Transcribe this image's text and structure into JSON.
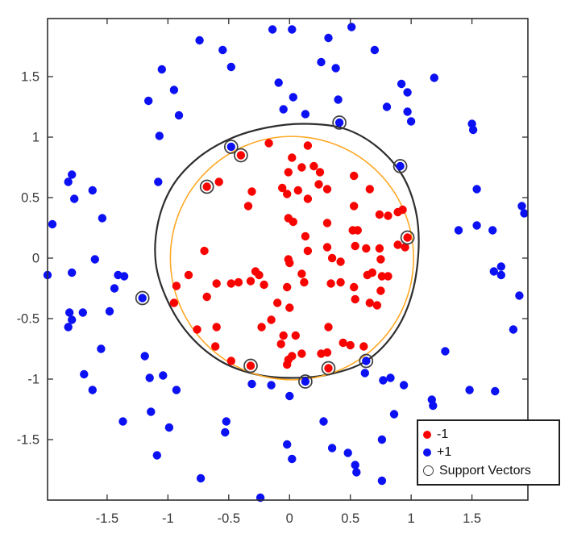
{
  "figure": {
    "background": "#ffffff"
  },
  "colors": {
    "neg1": "#f80400",
    "pos1": "#0b11f2",
    "boundary": "#2e2e2e",
    "reference_circle": "#ffa824",
    "sv_ring": "#3f3f3f",
    "axis": "#2f2f2f",
    "tick_label": "#3a3a3a"
  },
  "chart_data": {
    "type": "scatter",
    "title": "",
    "xlabel": "",
    "ylabel": "",
    "grid": false,
    "xlim": [
      -1.99,
      1.96
    ],
    "ylim": [
      -2.0,
      1.98
    ],
    "xticks": [
      "-1.5",
      "-1",
      "-0.5",
      "0",
      "0.5",
      "1",
      "1.5"
    ],
    "yticks": [
      "-1.5",
      "-1",
      "-0.5",
      "0",
      "0.5",
      "1",
      "1.5"
    ],
    "legend_position": "bottom-right",
    "legend": {
      "items": [
        {
          "label": "-1",
          "marker": "red-dot"
        },
        {
          "label": "+1",
          "marker": "blue-dot"
        },
        {
          "label": "Support Vectors",
          "marker": "open-circle"
        }
      ]
    },
    "series": [
      {
        "name": "-1",
        "marker": "filled-circle",
        "color_key": "neg1",
        "points": [
          [
            -0.17,
            0.95
          ],
          [
            0.15,
            0.93
          ],
          [
            0.02,
            0.83
          ],
          [
            -0.01,
            0.71
          ],
          [
            0.1,
            0.75
          ],
          [
            0.2,
            0.76
          ],
          [
            0.25,
            0.71
          ],
          [
            0.53,
            0.68
          ],
          [
            -0.58,
            0.63
          ],
          [
            -0.68,
            0.59
          ],
          [
            -0.4,
            0.85
          ],
          [
            -0.31,
            0.55
          ],
          [
            -0.06,
            0.58
          ],
          [
            -0.02,
            0.53
          ],
          [
            0.07,
            0.56
          ],
          [
            0.15,
            0.49
          ],
          [
            0.24,
            0.61
          ],
          [
            0.31,
            0.57
          ],
          [
            0.66,
            0.57
          ],
          [
            -0.34,
            0.43
          ],
          [
            -0.01,
            0.33
          ],
          [
            0.03,
            0.3
          ],
          [
            0.53,
            0.43
          ],
          [
            0.31,
            0.29
          ],
          [
            0.52,
            0.23
          ],
          [
            0.56,
            0.23
          ],
          [
            0.13,
            0.18
          ],
          [
            0.74,
            0.36
          ],
          [
            0.81,
            0.35
          ],
          [
            0.89,
            0.38
          ],
          [
            0.93,
            0.4
          ],
          [
            0.97,
            0.17
          ],
          [
            0.15,
            0.06
          ],
          [
            -0.7,
            0.06
          ],
          [
            0.31,
            0.09
          ],
          [
            0.35,
            0.0
          ],
          [
            0.42,
            -0.03
          ],
          [
            0.54,
            0.1
          ],
          [
            0.63,
            0.08
          ],
          [
            0.89,
            0.11
          ],
          [
            0.95,
            0.09
          ],
          [
            0.74,
            0.08
          ],
          [
            0.75,
            -0.01
          ],
          [
            -0.01,
            -0.01
          ],
          [
            0.0,
            -0.04
          ],
          [
            -0.28,
            -0.11
          ],
          [
            -0.25,
            -0.14
          ],
          [
            -0.6,
            -0.21
          ],
          [
            -0.48,
            -0.21
          ],
          [
            -0.42,
            -0.2
          ],
          [
            -0.32,
            -0.19
          ],
          [
            -0.21,
            -0.22
          ],
          [
            0.1,
            -0.13
          ],
          [
            0.12,
            -0.2
          ],
          [
            -0.02,
            -0.24
          ],
          [
            0.34,
            -0.21
          ],
          [
            0.42,
            -0.2
          ],
          [
            0.53,
            -0.24
          ],
          [
            0.64,
            -0.14
          ],
          [
            -0.83,
            -0.14
          ],
          [
            -0.93,
            -0.23
          ],
          [
            -0.95,
            -0.37
          ],
          [
            -0.68,
            -0.32
          ],
          [
            0.68,
            -0.12
          ],
          [
            0.76,
            -0.15
          ],
          [
            0.81,
            -0.15
          ],
          [
            0.75,
            -0.27
          ],
          [
            0.54,
            -0.34
          ],
          [
            -0.1,
            -0.37
          ],
          [
            0.0,
            -0.41
          ],
          [
            0.66,
            -0.37
          ],
          [
            0.72,
            -0.39
          ],
          [
            -0.15,
            -0.51
          ],
          [
            -0.23,
            -0.57
          ],
          [
            -0.6,
            -0.57
          ],
          [
            -0.76,
            -0.59
          ],
          [
            -0.05,
            -0.64
          ],
          [
            0.05,
            -0.64
          ],
          [
            0.32,
            -0.57
          ],
          [
            -0.61,
            -0.73
          ],
          [
            -0.48,
            -0.85
          ],
          [
            -0.07,
            -0.71
          ],
          [
            -0.01,
            -0.84
          ],
          [
            0.02,
            -0.81
          ],
          [
            0.1,
            -0.79
          ],
          [
            0.26,
            -0.79
          ],
          [
            0.31,
            -0.78
          ],
          [
            0.44,
            -0.7
          ],
          [
            0.5,
            -0.72
          ],
          [
            0.61,
            -0.73
          ],
          [
            -0.02,
            -0.88
          ],
          [
            -0.32,
            -0.89
          ],
          [
            0.32,
            -0.91
          ]
        ]
      },
      {
        "name": "+1",
        "marker": "filled-circle",
        "color_key": "pos1",
        "points": [
          [
            -0.14,
            1.89
          ],
          [
            0.02,
            1.89
          ],
          [
            0.51,
            1.91
          ],
          [
            0.32,
            1.82
          ],
          [
            -0.74,
            1.8
          ],
          [
            -0.55,
            1.72
          ],
          [
            0.7,
            1.72
          ],
          [
            0.26,
            1.62
          ],
          [
            0.38,
            1.57
          ],
          [
            -0.48,
            1.58
          ],
          [
            -1.05,
            1.56
          ],
          [
            1.19,
            1.49
          ],
          [
            -0.09,
            1.45
          ],
          [
            0.92,
            1.44
          ],
          [
            -0.95,
            1.39
          ],
          [
            0.97,
            1.37
          ],
          [
            0.03,
            1.33
          ],
          [
            0.4,
            1.31
          ],
          [
            -1.16,
            1.3
          ],
          [
            0.8,
            1.25
          ],
          [
            -0.05,
            1.23
          ],
          [
            0.97,
            1.21
          ],
          [
            0.13,
            1.19
          ],
          [
            -0.91,
            1.18
          ],
          [
            1.0,
            1.13
          ],
          [
            0.41,
            1.12
          ],
          [
            1.5,
            1.11
          ],
          [
            1.51,
            1.06
          ],
          [
            -1.07,
            1.01
          ],
          [
            -0.48,
            0.92
          ],
          [
            0.91,
            0.76
          ],
          [
            -1.79,
            0.69
          ],
          [
            -1.82,
            0.63
          ],
          [
            -1.08,
            0.63
          ],
          [
            -1.62,
            0.56
          ],
          [
            1.54,
            0.57
          ],
          [
            -1.77,
            0.49
          ],
          [
            1.91,
            0.43
          ],
          [
            1.93,
            0.37
          ],
          [
            -1.54,
            0.33
          ],
          [
            -1.95,
            0.28
          ],
          [
            1.54,
            0.27
          ],
          [
            1.39,
            0.23
          ],
          [
            1.67,
            0.23
          ],
          [
            -1.6,
            -0.01
          ],
          [
            -1.79,
            -0.12
          ],
          [
            -1.99,
            -0.14
          ],
          [
            -1.41,
            -0.14
          ],
          [
            -1.36,
            -0.15
          ],
          [
            1.68,
            -0.11
          ],
          [
            1.74,
            -0.07
          ],
          [
            1.74,
            -0.14
          ],
          [
            -1.44,
            -0.25
          ],
          [
            -1.21,
            -0.33
          ],
          [
            1.89,
            -0.31
          ],
          [
            -1.48,
            -0.44
          ],
          [
            -1.81,
            -0.45
          ],
          [
            -1.7,
            -0.45
          ],
          [
            -1.79,
            -0.51
          ],
          [
            -1.82,
            -0.57
          ],
          [
            1.84,
            -0.59
          ],
          [
            -1.55,
            -0.75
          ],
          [
            -1.19,
            -0.81
          ],
          [
            1.28,
            -0.77
          ],
          [
            0.63,
            -0.85
          ],
          [
            -1.69,
            -0.96
          ],
          [
            -1.15,
            -0.99
          ],
          [
            -1.04,
            -0.97
          ],
          [
            0.62,
            -0.95
          ],
          [
            0.13,
            -1.02
          ],
          [
            -0.31,
            -1.04
          ],
          [
            -0.15,
            -1.05
          ],
          [
            0.77,
            -1.01
          ],
          [
            0.83,
            -0.99
          ],
          [
            0.94,
            -1.05
          ],
          [
            -1.62,
            -1.09
          ],
          [
            -0.93,
            -1.09
          ],
          [
            0.0,
            -1.14
          ],
          [
            1.48,
            -1.09
          ],
          [
            1.69,
            -1.1
          ],
          [
            1.17,
            -1.17
          ],
          [
            1.18,
            -1.22
          ],
          [
            -1.14,
            -1.27
          ],
          [
            0.86,
            -1.29
          ],
          [
            -1.37,
            -1.35
          ],
          [
            -0.52,
            -1.35
          ],
          [
            0.28,
            -1.35
          ],
          [
            -0.99,
            -1.4
          ],
          [
            -0.53,
            -1.44
          ],
          [
            0.76,
            -1.5
          ],
          [
            -0.02,
            -1.54
          ],
          [
            0.35,
            -1.57
          ],
          [
            0.48,
            -1.61
          ],
          [
            -1.09,
            -1.63
          ],
          [
            0.02,
            -1.66
          ],
          [
            0.54,
            -1.71
          ],
          [
            0.55,
            -1.77
          ],
          [
            -0.73,
            -1.82
          ],
          [
            0.76,
            -1.84
          ],
          [
            -0.24,
            -1.98
          ]
        ]
      },
      {
        "name": "Support Vectors",
        "marker": "open-circle",
        "color_key": "sv_ring",
        "points": [
          [
            -0.68,
            0.59
          ],
          [
            -0.4,
            0.85
          ],
          [
            -0.48,
            0.92
          ],
          [
            0.41,
            1.12
          ],
          [
            0.91,
            0.76
          ],
          [
            0.97,
            0.17
          ],
          [
            -1.21,
            -0.33
          ],
          [
            -0.32,
            -0.89
          ],
          [
            0.32,
            -0.91
          ],
          [
            0.13,
            -1.02
          ],
          [
            0.63,
            -0.85
          ]
        ]
      }
    ],
    "curves": [
      {
        "name": "decision-boundary",
        "color_key": "boundary",
        "width": 2.2,
        "closed": true,
        "points": [
          [
            0.13,
            1.11
          ],
          [
            0.45,
            1.07
          ],
          [
            0.72,
            0.92
          ],
          [
            0.93,
            0.68
          ],
          [
            1.04,
            0.38
          ],
          [
            1.06,
            0.05
          ],
          [
            1.0,
            -0.32
          ],
          [
            0.86,
            -0.62
          ],
          [
            0.63,
            -0.85
          ],
          [
            0.33,
            -0.96
          ],
          [
            0.02,
            -0.99
          ],
          [
            -0.28,
            -0.96
          ],
          [
            -0.57,
            -0.85
          ],
          [
            -0.82,
            -0.64
          ],
          [
            -1.0,
            -0.36
          ],
          [
            -1.1,
            -0.04
          ],
          [
            -1.08,
            0.3
          ],
          [
            -0.96,
            0.6
          ],
          [
            -0.75,
            0.83
          ],
          [
            -0.48,
            0.99
          ],
          [
            -0.18,
            1.08
          ]
        ]
      },
      {
        "name": "reference-circle",
        "color_key": "reference_circle",
        "width": 1.6,
        "shape": "circle",
        "center": [
          0.02,
          0.0
        ],
        "radius": 1.0
      }
    ]
  }
}
